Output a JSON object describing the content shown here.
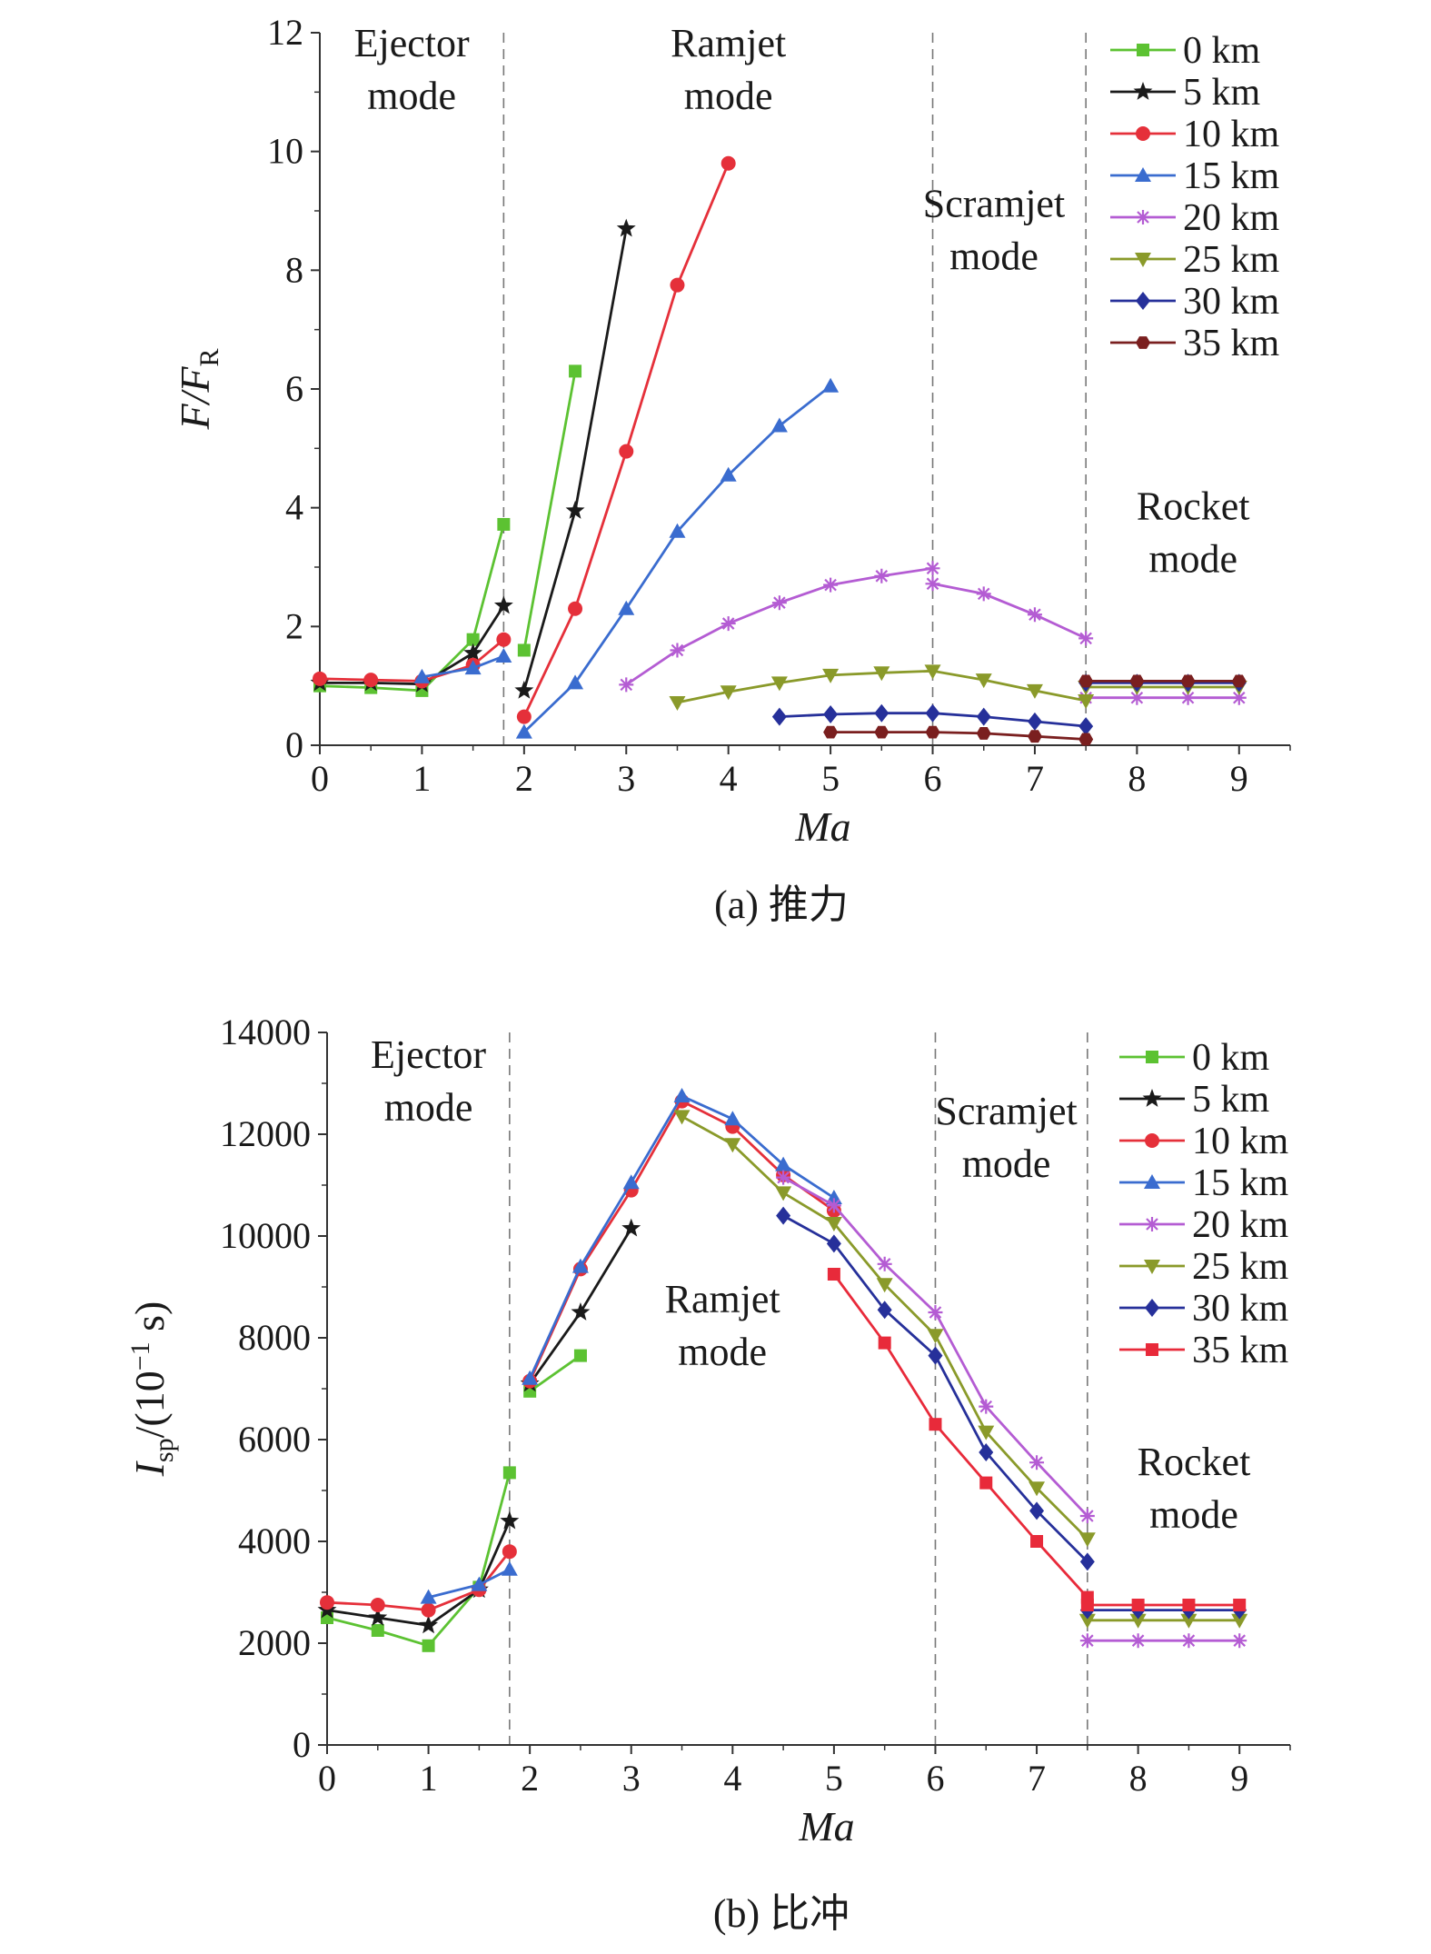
{
  "figure": {
    "caption_a": "(a) 推力",
    "caption_b": "(b) 比冲"
  },
  "chart_data": [
    {
      "type": "line",
      "panel": "a",
      "title": "",
      "xlabel": "Ma",
      "ylabel_main": "F/F",
      "ylabel_sub": "R",
      "xlim": [
        0,
        9.5
      ],
      "ylim": [
        0,
        12
      ],
      "xticks": [
        0,
        1,
        2,
        3,
        4,
        5,
        6,
        7,
        8,
        9
      ],
      "yticks": [
        0,
        2,
        4,
        6,
        8,
        10,
        12
      ],
      "boundaries": [
        1.8,
        6,
        7.5
      ],
      "mode_labels": [
        {
          "lines": [
            "Ejector",
            "mode"
          ],
          "x": 0.9,
          "y": 11.6
        },
        {
          "lines": [
            "Ramjet",
            "mode"
          ],
          "x": 4.0,
          "y": 11.6
        },
        {
          "lines": [
            "Scramjet",
            "mode"
          ],
          "x": 6.6,
          "y": 8.9
        },
        {
          "lines": [
            "Rocket",
            "mode"
          ],
          "x": 8.55,
          "y": 3.8
        }
      ],
      "legend_position": "top-right",
      "series": [
        {
          "name": "0 km",
          "color": "#5cc232",
          "marker": "square",
          "segments": [
            [
              [
                0,
                1.0
              ],
              [
                0.5,
                0.97
              ],
              [
                1,
                0.92
              ],
              [
                1.5,
                1.78
              ],
              [
                1.8,
                3.72
              ]
            ],
            [
              [
                2,
                1.6
              ],
              [
                2.5,
                6.3
              ]
            ]
          ]
        },
        {
          "name": "5 km",
          "color": "#1a1a1a",
          "marker": "star",
          "segments": [
            [
              [
                0,
                1.05
              ],
              [
                0.5,
                1.05
              ],
              [
                1,
                1.03
              ],
              [
                1.5,
                1.55
              ],
              [
                1.8,
                2.35
              ]
            ],
            [
              [
                2,
                0.92
              ],
              [
                2.5,
                3.95
              ],
              [
                3,
                8.7
              ]
            ]
          ]
        },
        {
          "name": "10 km",
          "color": "#e5303a",
          "marker": "circle",
          "segments": [
            [
              [
                0,
                1.12
              ],
              [
                0.5,
                1.1
              ],
              [
                1,
                1.08
              ],
              [
                1.5,
                1.35
              ],
              [
                1.8,
                1.78
              ]
            ],
            [
              [
                2,
                0.48
              ],
              [
                2.5,
                2.3
              ],
              [
                3,
                4.95
              ],
              [
                3.5,
                7.75
              ],
              [
                4,
                9.8
              ]
            ]
          ]
        },
        {
          "name": "15 km",
          "color": "#3a6ccf",
          "marker": "triangle",
          "segments": [
            [
              [
                1,
                1.15
              ],
              [
                1.5,
                1.3
              ],
              [
                1.8,
                1.5
              ]
            ],
            [
              [
                2,
                0.22
              ],
              [
                2.5,
                1.05
              ],
              [
                3,
                2.3
              ],
              [
                3.5,
                3.6
              ],
              [
                4,
                4.55
              ],
              [
                4.5,
                5.38
              ],
              [
                5,
                6.05
              ]
            ]
          ]
        },
        {
          "name": "20 km",
          "color": "#b45cd3",
          "marker": "asterisk",
          "segments": [
            [
              [
                3,
                1.02
              ],
              [
                3.5,
                1.6
              ],
              [
                4,
                2.05
              ],
              [
                4.5,
                2.4
              ],
              [
                5,
                2.7
              ],
              [
                5.5,
                2.85
              ],
              [
                6,
                2.98
              ]
            ],
            [
              [
                6,
                2.72
              ],
              [
                6.5,
                2.55
              ],
              [
                7,
                2.2
              ],
              [
                7.5,
                1.8
              ]
            ],
            [
              [
                7.5,
                0.8
              ],
              [
                8,
                0.8
              ],
              [
                8.5,
                0.8
              ],
              [
                9,
                0.8
              ]
            ]
          ]
        },
        {
          "name": "25 km",
          "color": "#8a9a2a",
          "marker": "triangle-down",
          "segments": [
            [
              [
                3.5,
                0.72
              ],
              [
                4,
                0.9
              ],
              [
                4.5,
                1.05
              ],
              [
                5,
                1.18
              ],
              [
                5.5,
                1.22
              ],
              [
                6,
                1.25
              ],
              [
                6.5,
                1.1
              ],
              [
                7,
                0.92
              ],
              [
                7.5,
                0.75
              ]
            ],
            [
              [
                7.5,
                0.98
              ],
              [
                8,
                0.98
              ],
              [
                8.5,
                0.98
              ],
              [
                9,
                0.98
              ]
            ]
          ]
        },
        {
          "name": "30 km",
          "color": "#26309a",
          "marker": "diamond",
          "segments": [
            [
              [
                4.5,
                0.48
              ],
              [
                5,
                0.52
              ],
              [
                5.5,
                0.54
              ],
              [
                6,
                0.54
              ],
              [
                6.5,
                0.48
              ],
              [
                7,
                0.4
              ],
              [
                7.5,
                0.32
              ]
            ],
            [
              [
                7.5,
                1.05
              ],
              [
                8,
                1.05
              ],
              [
                8.5,
                1.05
              ],
              [
                9,
                1.05
              ]
            ]
          ]
        },
        {
          "name": "35 km",
          "color": "#7a1f1f",
          "marker": "hexagon",
          "segments": [
            [
              [
                5,
                0.22
              ],
              [
                5.5,
                0.22
              ],
              [
                6,
                0.22
              ],
              [
                6.5,
                0.2
              ],
              [
                7,
                0.15
              ],
              [
                7.5,
                0.1
              ]
            ],
            [
              [
                7.5,
                1.08
              ],
              [
                8,
                1.08
              ],
              [
                8.5,
                1.08
              ],
              [
                9,
                1.08
              ]
            ]
          ]
        }
      ]
    },
    {
      "type": "line",
      "panel": "b",
      "title": "",
      "xlabel": "Ma",
      "ylabel_main": "I",
      "ylabel_sub": "sp",
      "ylabel_rest": "/(10",
      "ylabel_sup": "−1",
      "ylabel_end": " s)",
      "xlim": [
        0,
        9.5
      ],
      "ylim": [
        0,
        14000
      ],
      "xticks": [
        0,
        1,
        2,
        3,
        4,
        5,
        6,
        7,
        8,
        9
      ],
      "yticks": [
        0,
        2000,
        4000,
        6000,
        8000,
        10000,
        12000,
        14000
      ],
      "boundaries": [
        1.8,
        6,
        7.5
      ],
      "mode_labels": [
        {
          "lines": [
            "Ejector",
            "mode"
          ],
          "x": 1.0,
          "y": 13300
        },
        {
          "lines": [
            "Ramjet",
            "mode"
          ],
          "x": 3.9,
          "y": 8500
        },
        {
          "lines": [
            "Scramjet",
            "mode"
          ],
          "x": 6.7,
          "y": 12200
        },
        {
          "lines": [
            "Rocket",
            "mode"
          ],
          "x": 8.55,
          "y": 5300
        }
      ],
      "legend_position": "top-right",
      "series": [
        {
          "name": "0 km",
          "color": "#5cc232",
          "marker": "square",
          "segments": [
            [
              [
                0,
                2500
              ],
              [
                0.5,
                2250
              ],
              [
                1,
                1950
              ],
              [
                1.5,
                3100
              ],
              [
                1.8,
                5350
              ]
            ],
            [
              [
                2,
                6950
              ],
              [
                2.5,
                7650
              ]
            ]
          ]
        },
        {
          "name": "5 km",
          "color": "#1a1a1a",
          "marker": "star",
          "segments": [
            [
              [
                0,
                2650
              ],
              [
                0.5,
                2500
              ],
              [
                1,
                2350
              ],
              [
                1.5,
                3050
              ],
              [
                1.8,
                4400
              ]
            ],
            [
              [
                2,
                7100
              ],
              [
                2.5,
                8500
              ],
              [
                3,
                10150
              ]
            ]
          ]
        },
        {
          "name": "10 km",
          "color": "#e5303a",
          "marker": "circle",
          "segments": [
            [
              [
                0,
                2800
              ],
              [
                0.5,
                2750
              ],
              [
                1,
                2650
              ],
              [
                1.5,
                3050
              ],
              [
                1.8,
                3800
              ]
            ],
            [
              [
                2,
                7150
              ],
              [
                2.5,
                9350
              ],
              [
                3,
                10900
              ],
              [
                3.5,
                12650
              ],
              [
                4,
                12150
              ],
              [
                4.5,
                11200
              ],
              [
                5,
                10500
              ]
            ]
          ]
        },
        {
          "name": "15 km",
          "color": "#3a6ccf",
          "marker": "triangle",
          "segments": [
            [
              [
                1,
                2900
              ],
              [
                1.5,
                3150
              ],
              [
                1.8,
                3450
              ]
            ],
            [
              [
                2,
                7200
              ],
              [
                2.5,
                9400
              ],
              [
                3,
                11050
              ],
              [
                3.5,
                12750
              ],
              [
                4,
                12300
              ],
              [
                4.5,
                11400
              ],
              [
                5,
                10750
              ]
            ]
          ]
        },
        {
          "name": "20 km",
          "color": "#b45cd3",
          "marker": "asterisk",
          "segments": [
            [
              [
                4.5,
                11150
              ],
              [
                5,
                10600
              ],
              [
                5.5,
                9450
              ],
              [
                6,
                8500
              ],
              [
                6.5,
                6650
              ],
              [
                7,
                5550
              ],
              [
                7.5,
                4500
              ]
            ],
            [
              [
                7.5,
                2050
              ],
              [
                8,
                2050
              ],
              [
                8.5,
                2050
              ],
              [
                9,
                2050
              ]
            ]
          ]
        },
        {
          "name": "25 km",
          "color": "#8a9a2a",
          "marker": "triangle-down",
          "segments": [
            [
              [
                3.5,
                12350
              ],
              [
                4,
                11800
              ],
              [
                4.5,
                10850
              ],
              [
                5,
                10250
              ],
              [
                5.5,
                9050
              ],
              [
                6,
                8050
              ],
              [
                6.5,
                6150
              ],
              [
                7,
                5050
              ],
              [
                7.5,
                4050
              ]
            ],
            [
              [
                7.5,
                2450
              ],
              [
                8,
                2450
              ],
              [
                8.5,
                2450
              ],
              [
                9,
                2450
              ]
            ]
          ]
        },
        {
          "name": "30 km",
          "color": "#26309a",
          "marker": "diamond",
          "segments": [
            [
              [
                4.5,
                10400
              ],
              [
                5,
                9850
              ],
              [
                5.5,
                8550
              ],
              [
                6,
                7650
              ],
              [
                6.5,
                5750
              ],
              [
                7,
                4600
              ],
              [
                7.5,
                3600
              ]
            ],
            [
              [
                7.5,
                2650
              ],
              [
                8,
                2650
              ],
              [
                8.5,
                2650
              ],
              [
                9,
                2650
              ]
            ]
          ]
        },
        {
          "name": "35 km",
          "color": "#e82a3a",
          "marker": "square",
          "segments": [
            [
              [
                5,
                9250
              ],
              [
                5.5,
                7900
              ],
              [
                6,
                6300
              ],
              [
                6.5,
                5150
              ],
              [
                7,
                4000
              ],
              [
                7.5,
                2900
              ]
            ],
            [
              [
                7.5,
                2750
              ],
              [
                8,
                2750
              ],
              [
                8.5,
                2750
              ],
              [
                9,
                2750
              ]
            ]
          ]
        }
      ]
    }
  ]
}
